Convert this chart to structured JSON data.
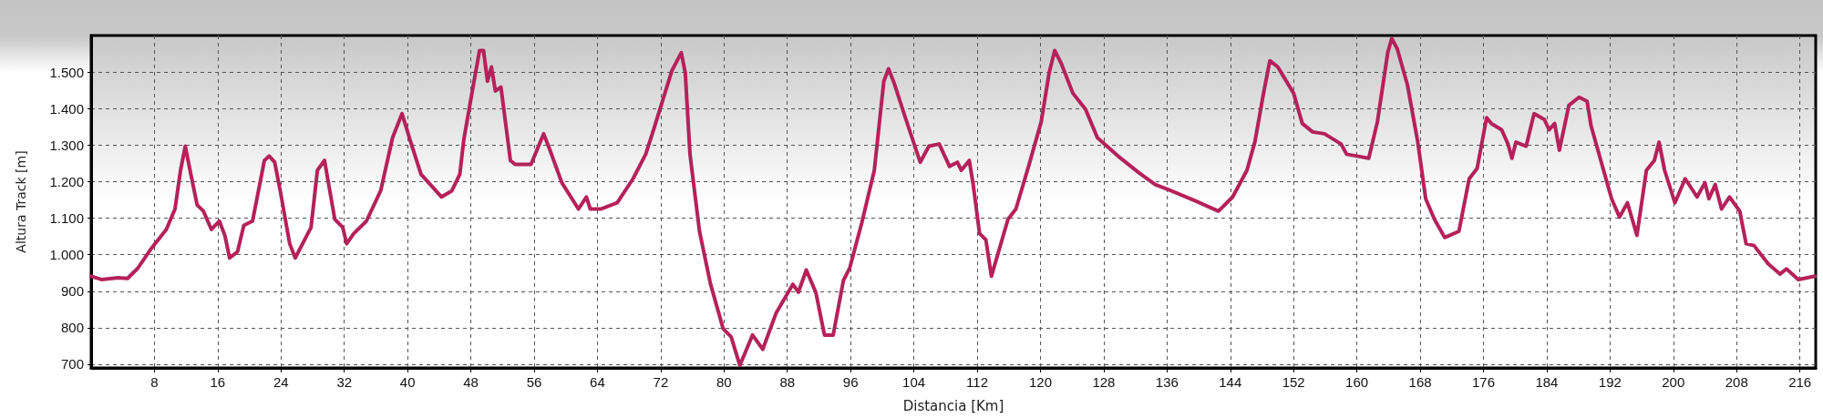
{
  "chart_data": {
    "type": "line",
    "xlabel": "Distancia [Km]",
    "ylabel": "Altura Track [m]",
    "xlim": [
      0,
      218
    ],
    "xticks": [
      8,
      16,
      24,
      32,
      40,
      48,
      56,
      64,
      72,
      80,
      88,
      96,
      104,
      112,
      120,
      128,
      136,
      144,
      152,
      160,
      168,
      176,
      184,
      192,
      200,
      208,
      216
    ],
    "ylim": [
      690,
      1600
    ],
    "yticks": [
      {
        "value": 700,
        "label": "700"
      },
      {
        "value": 800,
        "label": "800"
      },
      {
        "value": 900,
        "label": "900"
      },
      {
        "value": 1000,
        "label": "1.000"
      },
      {
        "value": 1100,
        "label": "1.100"
      },
      {
        "value": 1200,
        "label": "1.200"
      },
      {
        "value": 1300,
        "label": "1.300"
      },
      {
        "value": 1400,
        "label": "1.400"
      },
      {
        "value": 1500,
        "label": "1.500"
      }
    ],
    "grid": true,
    "marker": "none",
    "line_style": "solid",
    "series": [
      {
        "color": "#b5215a",
        "x": [
          0,
          1.3,
          3.4,
          4.6,
          5.9,
          7.5,
          9.5,
          10.6,
          11.3,
          11.9,
          12.5,
          13.4,
          14.2,
          15.2,
          16.2,
          16.9,
          17.5,
          18.5,
          19.3,
          20.4,
          21.9,
          22.5,
          23.2,
          23.9,
          25.1,
          25.8,
          27.8,
          28.6,
          29.5,
          29.9,
          30.8,
          31.8,
          32.3,
          33.2,
          34.8,
          36.6,
          38.1,
          39.3,
          40.4,
          41.7,
          44.3,
          45.6,
          46.6,
          47.1,
          48.4,
          49.1,
          49.6,
          50.1,
          50.6,
          51.1,
          51.8,
          53.0,
          53.6,
          55.6,
          57.2,
          57.9,
          59.5,
          61.6,
          62.6,
          63.1,
          64.4,
          66.5,
          68.5,
          70.1,
          71.1,
          73.4,
          74.6,
          75.1,
          75.7,
          76.9,
          78.3,
          79.9,
          80.9,
          82.0,
          83.6,
          84.9,
          86.6,
          88.7,
          89.4,
          90.4,
          91.6,
          92.7,
          93.8,
          95.1,
          95.9,
          97.4,
          99.0,
          100.2,
          100.8,
          101.5,
          103.0,
          104.8,
          105.9,
          107.2,
          108.5,
          109.5,
          110.0,
          111.0,
          111.5,
          112.3,
          113.1,
          113.8,
          115.9,
          116.9,
          118.5,
          120.1,
          121.1,
          121.8,
          122.6,
          124.1,
          125.7,
          127.2,
          129.8,
          132.4,
          134.5,
          136.5,
          139.6,
          142.5,
          144.3,
          146.1,
          147.1,
          148.2,
          149.0,
          150.0,
          152.0,
          153.1,
          154.4,
          155.9,
          158.0,
          158.7,
          160.0,
          161.5,
          162.6,
          163.9,
          164.4,
          165.1,
          166.4,
          167.7,
          168.7,
          169.8,
          171.1,
          172.9,
          174.2,
          175.2,
          176.4,
          177.0,
          178.3,
          179.1,
          179.6,
          180.1,
          181.4,
          182.4,
          183.7,
          184.3,
          185.0,
          185.6,
          186.8,
          188.1,
          189.1,
          189.6,
          190.9,
          192.2,
          193.2,
          194.2,
          195.4,
          196.6,
          197.6,
          198.2,
          198.9,
          200.2,
          201.5,
          203.0,
          204.0,
          204.5,
          205.3,
          206.1,
          207.1,
          208.4,
          209.2,
          210.2,
          212.0,
          213.5,
          214.3,
          215.8,
          217.9
        ],
        "values": [
          941,
          932,
          937,
          935,
          963,
          1014,
          1069,
          1125,
          1231,
          1297,
          1231,
          1136,
          1119,
          1069,
          1092,
          1053,
          991,
          1008,
          1080,
          1092,
          1258,
          1270,
          1253,
          1175,
          1030,
          991,
          1075,
          1231,
          1258,
          1208,
          1097,
          1075,
          1030,
          1058,
          1092,
          1175,
          1320,
          1386,
          1308,
          1220,
          1158,
          1175,
          1220,
          1314,
          1475,
          1559,
          1559,
          1475,
          1514,
          1448,
          1459,
          1258,
          1247,
          1247,
          1331,
          1292,
          1197,
          1125,
          1158,
          1125,
          1125,
          1142,
          1208,
          1275,
          1342,
          1503,
          1553,
          1498,
          1275,
          1064,
          919,
          797,
          775,
          697,
          780,
          741,
          841,
          919,
          897,
          958,
          897,
          780,
          780,
          930,
          964,
          1086,
          1231,
          1475,
          1509,
          1470,
          1370,
          1253,
          1297,
          1303,
          1242,
          1253,
          1231,
          1258,
          1192,
          1058,
          1041,
          941,
          1097,
          1125,
          1242,
          1364,
          1498,
          1559,
          1525,
          1442,
          1398,
          1320,
          1270,
          1225,
          1192,
          1175,
          1147,
          1119,
          1158,
          1231,
          1308,
          1442,
          1531,
          1514,
          1442,
          1359,
          1336,
          1331,
          1303,
          1275,
          1270,
          1264,
          1364,
          1553,
          1592,
          1564,
          1464,
          1308,
          1153,
          1097,
          1047,
          1064,
          1208,
          1236,
          1375,
          1359,
          1342,
          1303,
          1264,
          1308,
          1297,
          1386,
          1370,
          1342,
          1359,
          1286,
          1409,
          1431,
          1420,
          1353,
          1253,
          1153,
          1103,
          1142,
          1053,
          1231,
          1258,
          1308,
          1231,
          1142,
          1208,
          1158,
          1197,
          1153,
          1192,
          1125,
          1158,
          1119,
          1030,
          1025,
          975,
          947,
          961,
          932,
          941
        ]
      }
    ]
  }
}
